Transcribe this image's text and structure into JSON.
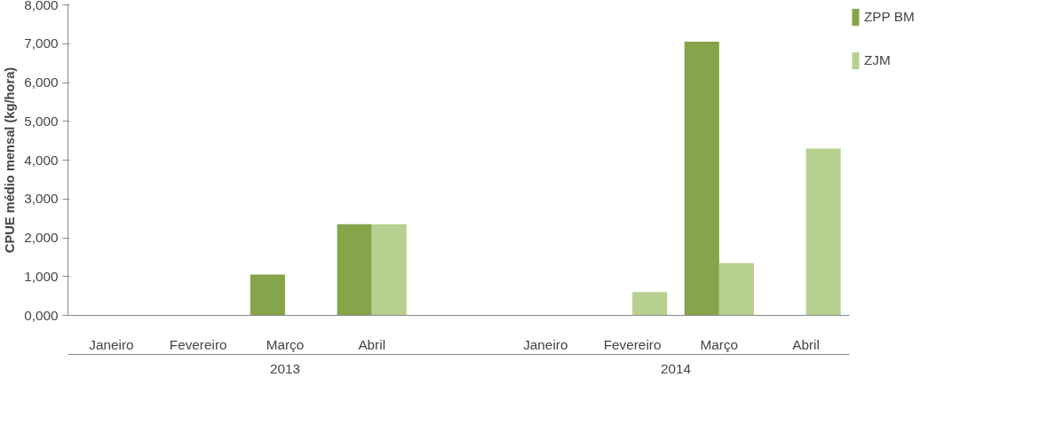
{
  "chart_data": {
    "type": "bar",
    "ylabel": "CPUE médio mensal (kg/hora)",
    "categories": [
      "Janeiro",
      "Fevereiro",
      "Março",
      "Abril",
      null,
      "Janeiro",
      "Fevereiro",
      "Março",
      "Abril"
    ],
    "series": [
      {
        "name": "ZPP BM",
        "color": "#86a44a",
        "values": [
          null,
          null,
          1050,
          2350,
          null,
          null,
          null,
          7050,
          null
        ]
      },
      {
        "name": "ZJM",
        "color": "#b8d08f",
        "values": [
          null,
          null,
          null,
          2350,
          null,
          null,
          600,
          1350,
          4300
        ]
      }
    ],
    "ylim": [
      0,
      8000
    ],
    "yticks": [
      {
        "value": 0,
        "label": "0,000"
      },
      {
        "value": 1000,
        "label": "1,000"
      },
      {
        "value": 2000,
        "label": "2,000"
      },
      {
        "value": 3000,
        "label": "3,000"
      },
      {
        "value": 4000,
        "label": "4,000"
      },
      {
        "value": 5000,
        "label": "5,000"
      },
      {
        "value": 6000,
        "label": "6,000"
      },
      {
        "value": 7000,
        "label": "7,000"
      },
      {
        "value": 8000,
        "label": "8,000"
      }
    ],
    "annotations": [
      "2013",
      "2014"
    ],
    "legend": "right",
    "grid": false
  }
}
